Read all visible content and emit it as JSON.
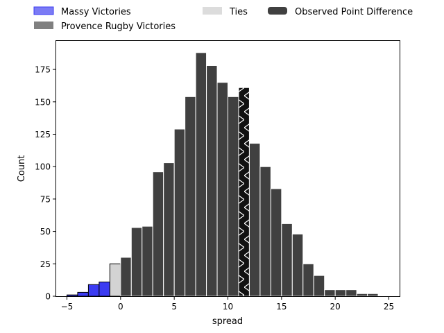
{
  "chart_data": {
    "type": "bar",
    "title": "",
    "xlabel": "spread",
    "ylabel": "Count",
    "xlim": [
      -6,
      26
    ],
    "ylim": [
      0,
      197
    ],
    "x_ticks": [
      -5,
      0,
      5,
      10,
      15,
      20,
      25
    ],
    "y_ticks": [
      0,
      25,
      50,
      75,
      100,
      125,
      150,
      175
    ],
    "grid": false,
    "legend_position": "top (above plot, 3 columns)",
    "legend": [
      {
        "label": "Massy Victories",
        "color": "#7b7bf5"
      },
      {
        "label": "Provence Rugby Victories",
        "color": "#808080"
      },
      {
        "label": "Ties",
        "color": "#dcdcdc"
      },
      {
        "label": "Observed Point Difference",
        "color": "#404040"
      }
    ],
    "bins": [
      {
        "x": -4.5,
        "count": 1,
        "category": "Massy Victories"
      },
      {
        "x": -3.5,
        "count": 3,
        "category": "Massy Victories"
      },
      {
        "x": -2.5,
        "count": 9,
        "category": "Massy Victories"
      },
      {
        "x": -1.5,
        "count": 11,
        "category": "Massy Victories"
      },
      {
        "x": -0.5,
        "count": 25,
        "category": "Ties"
      },
      {
        "x": 0.5,
        "count": 30,
        "category": "Provence Rugby Victories"
      },
      {
        "x": 1.5,
        "count": 53,
        "category": "Provence Rugby Victories"
      },
      {
        "x": 2.5,
        "count": 54,
        "category": "Provence Rugby Victories"
      },
      {
        "x": 3.5,
        "count": 96,
        "category": "Provence Rugby Victories"
      },
      {
        "x": 4.5,
        "count": 103,
        "category": "Provence Rugby Victories"
      },
      {
        "x": 5.5,
        "count": 129,
        "category": "Provence Rugby Victories"
      },
      {
        "x": 6.5,
        "count": 154,
        "category": "Provence Rugby Victories"
      },
      {
        "x": 7.5,
        "count": 188,
        "category": "Provence Rugby Victories"
      },
      {
        "x": 8.5,
        "count": 178,
        "category": "Provence Rugby Victories"
      },
      {
        "x": 9.5,
        "count": 165,
        "category": "Provence Rugby Victories"
      },
      {
        "x": 10.5,
        "count": 154,
        "category": "Provence Rugby Victories"
      },
      {
        "x": 11.5,
        "count": 161,
        "category": "Observed Point Difference"
      },
      {
        "x": 12.5,
        "count": 118,
        "category": "Provence Rugby Victories"
      },
      {
        "x": 13.5,
        "count": 100,
        "category": "Provence Rugby Victories"
      },
      {
        "x": 14.5,
        "count": 83,
        "category": "Provence Rugby Victories"
      },
      {
        "x": 15.5,
        "count": 56,
        "category": "Provence Rugby Victories"
      },
      {
        "x": 16.5,
        "count": 48,
        "category": "Provence Rugby Victories"
      },
      {
        "x": 17.5,
        "count": 25,
        "category": "Provence Rugby Victories"
      },
      {
        "x": 18.5,
        "count": 16,
        "category": "Provence Rugby Victories"
      },
      {
        "x": 19.5,
        "count": 5,
        "category": "Provence Rugby Victories"
      },
      {
        "x": 20.5,
        "count": 5,
        "category": "Provence Rugby Victories"
      },
      {
        "x": 21.5,
        "count": 5,
        "category": "Provence Rugby Victories"
      },
      {
        "x": 22.5,
        "count": 2,
        "category": "Provence Rugby Victories"
      },
      {
        "x": 23.5,
        "count": 2,
        "category": "Provence Rugby Victories"
      }
    ],
    "bin_width": 1,
    "colors": {
      "massy": "#3b3bf2",
      "ties": "#d3d3d3",
      "provence": "#404040",
      "observed": "#111111"
    }
  }
}
